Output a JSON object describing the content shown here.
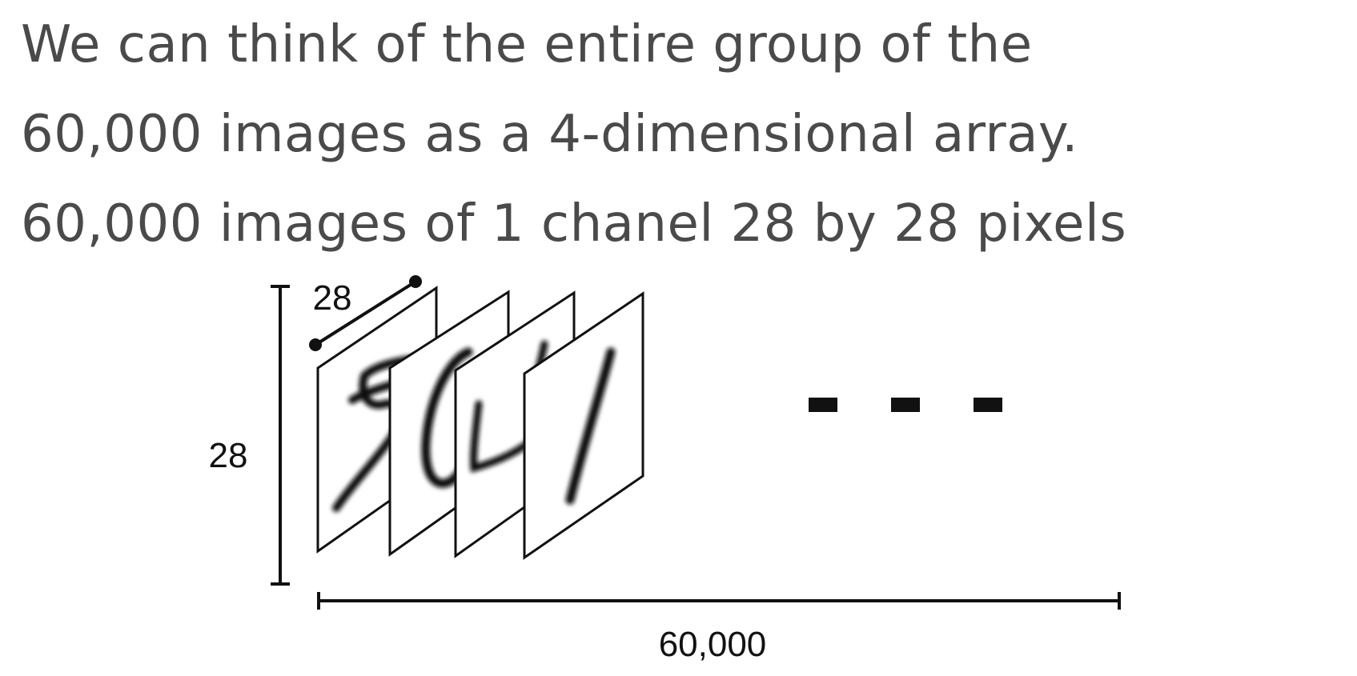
{
  "heading": {
    "line1": "We can think of the entire group of the",
    "line2": "60,000 images as a 4-dimensional array.",
    "line3": "60,000 images of 1 chanel 28 by 28 pixels"
  },
  "diagram": {
    "width_label": "28",
    "height_label": "28",
    "count_label": "60,000",
    "digits": [
      "5",
      "0",
      "4",
      "1"
    ],
    "ellipsis_dots": 3
  },
  "colors": {
    "text": "#4a4a4a",
    "ink": "#111111",
    "background": "#ffffff"
  }
}
